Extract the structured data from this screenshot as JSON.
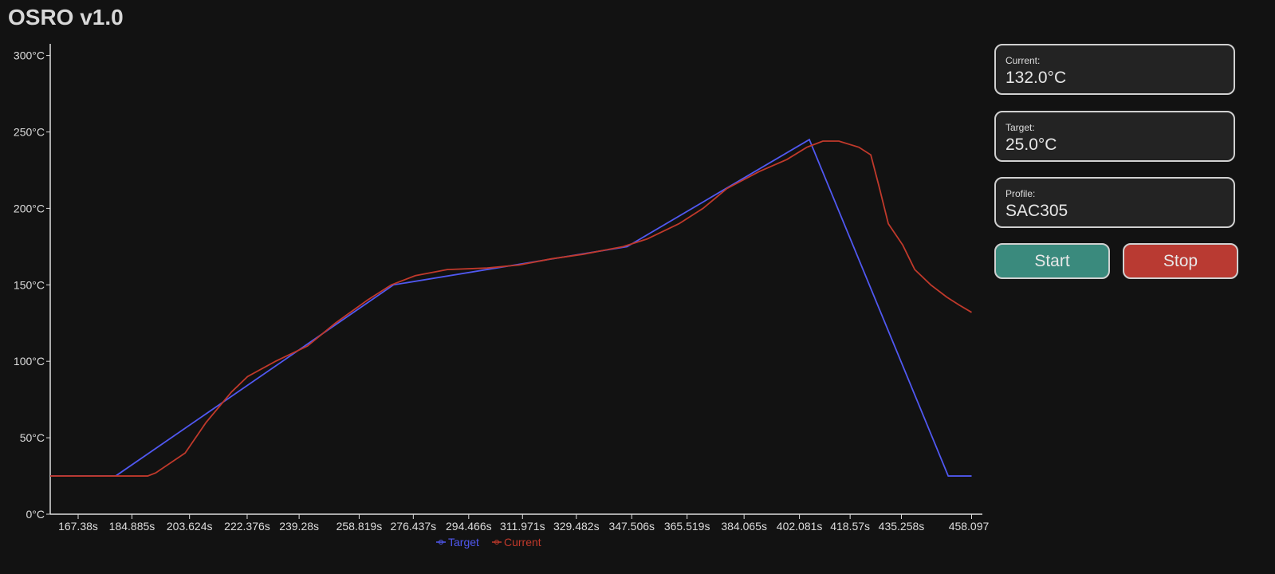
{
  "header": {
    "title": "OSRO v1.0"
  },
  "status": {
    "current": {
      "label": "Current:",
      "value": "132.0°C"
    },
    "target": {
      "label": "Target:",
      "value": "25.0°C"
    },
    "profile": {
      "label": "Profile:",
      "value": "SAC305"
    }
  },
  "controls": {
    "start_label": "Start",
    "stop_label": "Stop",
    "start_color": "#3a8a7d",
    "stop_color": "#b93a32"
  },
  "chart_data": {
    "type": "line",
    "xlim": [
      158.3,
      461.6
    ],
    "ylim": [
      0,
      305
    ],
    "y_ticks": [
      0,
      50,
      100,
      150,
      200,
      250,
      300
    ],
    "y_tick_labels": [
      "0°C",
      "50°C",
      "100°C",
      "150°C",
      "200°C",
      "250°C",
      "300°C"
    ],
    "x_ticks": [
      167.38,
      184.885,
      203.624,
      222.376,
      239.28,
      258.819,
      276.437,
      294.466,
      311.971,
      329.482,
      347.506,
      365.519,
      384.065,
      402.081,
      418.57,
      435.258,
      458.097
    ],
    "x_tick_labels": [
      "167.38s",
      "184.885s",
      "203.624s",
      "222.376s",
      "239.28s",
      "258.819s",
      "276.437s",
      "294.466s",
      "311.971s",
      "329.482s",
      "347.506s",
      "365.519s",
      "384.065s",
      "402.081s",
      "418.57s",
      "435.258s",
      "458.097s"
    ],
    "grid": false,
    "legend": "bottom-center",
    "series": [
      {
        "name": "Target",
        "color": "#5058f0",
        "points": [
          [
            158.3,
            25
          ],
          [
            179.6,
            25
          ],
          [
            270,
            150
          ],
          [
            346,
            175
          ],
          [
            405.3,
            245
          ],
          [
            450.5,
            25
          ],
          [
            458.1,
            25
          ]
        ]
      },
      {
        "name": "Current",
        "color": "#c0392b",
        "points": [
          [
            158.3,
            25
          ],
          [
            190,
            25
          ],
          [
            192.6,
            27
          ],
          [
            202.2,
            40
          ],
          [
            209,
            60
          ],
          [
            217.3,
            80
          ],
          [
            222.5,
            90
          ],
          [
            231.6,
            100
          ],
          [
            242,
            110
          ],
          [
            251.1,
            125
          ],
          [
            261.5,
            140
          ],
          [
            269.3,
            150
          ],
          [
            277.1,
            156
          ],
          [
            287.5,
            160
          ],
          [
            300.5,
            161
          ],
          [
            310.9,
            163
          ],
          [
            321.3,
            167
          ],
          [
            331.7,
            170
          ],
          [
            344.7,
            175
          ],
          [
            352.5,
            180
          ],
          [
            362.9,
            190
          ],
          [
            370.7,
            200
          ],
          [
            378.5,
            213
          ],
          [
            388.9,
            224
          ],
          [
            398,
            232
          ],
          [
            404.5,
            240
          ],
          [
            409.7,
            244
          ],
          [
            414.9,
            244
          ],
          [
            421.4,
            240
          ],
          [
            425.3,
            235
          ],
          [
            427.9,
            215
          ],
          [
            431,
            190
          ],
          [
            435.7,
            176
          ],
          [
            439.6,
            160
          ],
          [
            444.8,
            150
          ],
          [
            450,
            142
          ],
          [
            453.9,
            137
          ],
          [
            458.1,
            132
          ]
        ]
      }
    ]
  }
}
